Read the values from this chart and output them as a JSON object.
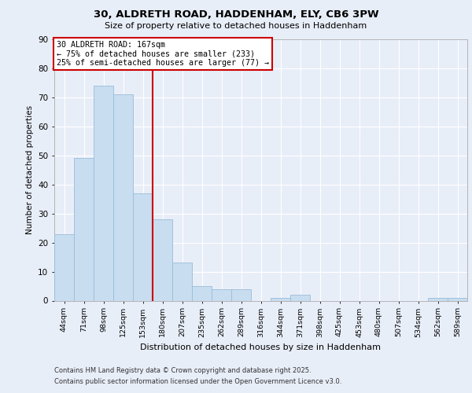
{
  "title": "30, ALDRETH ROAD, HADDENHAM, ELY, CB6 3PW",
  "subtitle": "Size of property relative to detached houses in Haddenham",
  "xlabel": "Distribution of detached houses by size in Haddenham",
  "ylabel": "Number of detached properties",
  "bar_labels": [
    "44sqm",
    "71sqm",
    "98sqm",
    "125sqm",
    "153sqm",
    "180sqm",
    "207sqm",
    "235sqm",
    "262sqm",
    "289sqm",
    "316sqm",
    "344sqm",
    "371sqm",
    "398sqm",
    "425sqm",
    "453sqm",
    "480sqm",
    "507sqm",
    "534sqm",
    "562sqm",
    "589sqm"
  ],
  "bar_values": [
    23,
    49,
    74,
    71,
    37,
    28,
    13,
    5,
    4,
    4,
    0,
    1,
    2,
    0,
    0,
    0,
    0,
    0,
    0,
    1,
    1
  ],
  "bar_color": "#c8ddf0",
  "bar_edge_color": "#9bbcd8",
  "vline_x": 4.5,
  "vline_color": "#cc0000",
  "ylim": [
    0,
    90
  ],
  "yticks": [
    0,
    10,
    20,
    30,
    40,
    50,
    60,
    70,
    80,
    90
  ],
  "annotation_title": "30 ALDRETH ROAD: 167sqm",
  "annotation_line1": "← 75% of detached houses are smaller (233)",
  "annotation_line2": "25% of semi-detached houses are larger (77) →",
  "bg_color": "#e8eef8",
  "plot_bg_color": "#e8eef8",
  "footer1": "Contains HM Land Registry data © Crown copyright and database right 2025.",
  "footer2": "Contains public sector information licensed under the Open Government Licence v3.0."
}
